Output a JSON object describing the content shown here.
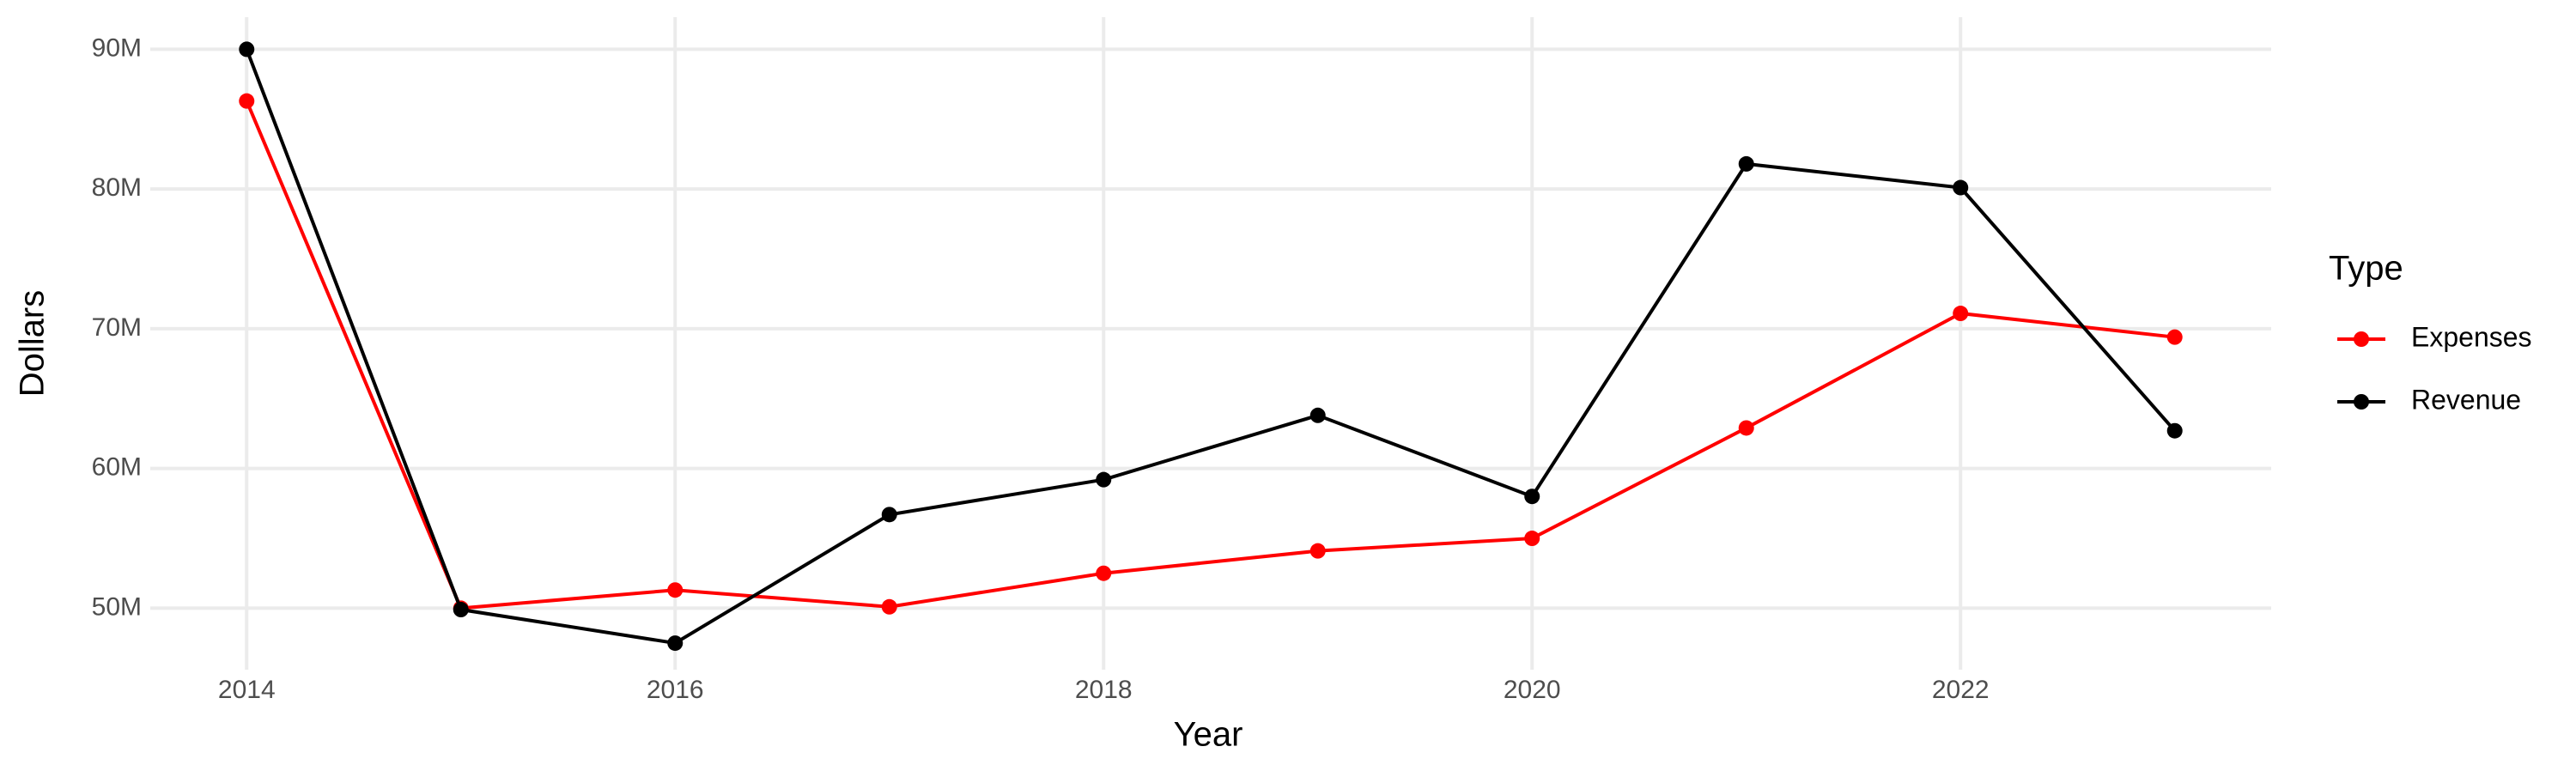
{
  "chart_data": {
    "type": "line",
    "x_label": "Year",
    "y_label": "Dollars",
    "legend_title": "Type",
    "x": [
      2014,
      2015,
      2016,
      2017,
      2018,
      2019,
      2020,
      2021,
      2022,
      2023
    ],
    "series": [
      {
        "name": "Expenses",
        "color": "#ff0000",
        "values": [
          86300000,
          50000000,
          51300000,
          50100000,
          52500000,
          54100000,
          55000000,
          62900000,
          71100000,
          69400000
        ]
      },
      {
        "name": "Revenue",
        "color": "#000000",
        "values": [
          90000000,
          49900000,
          47500000,
          56700000,
          59200000,
          63800000,
          58000000,
          81800000,
          80100000,
          62700000
        ]
      }
    ],
    "xlim": [
      2013.55,
      2023.45
    ],
    "xticks": [
      2014,
      2016,
      2018,
      2020,
      2022
    ],
    "ylim": [
      45600000,
      92300000
    ],
    "yticks": [
      {
        "value": 50000000,
        "label": "50M"
      },
      {
        "value": 60000000,
        "label": "60M"
      },
      {
        "value": 70000000,
        "label": "70M"
      },
      {
        "value": 80000000,
        "label": "80M"
      },
      {
        "value": 90000000,
        "label": "90M"
      }
    ],
    "grid": true,
    "legend": "right"
  }
}
